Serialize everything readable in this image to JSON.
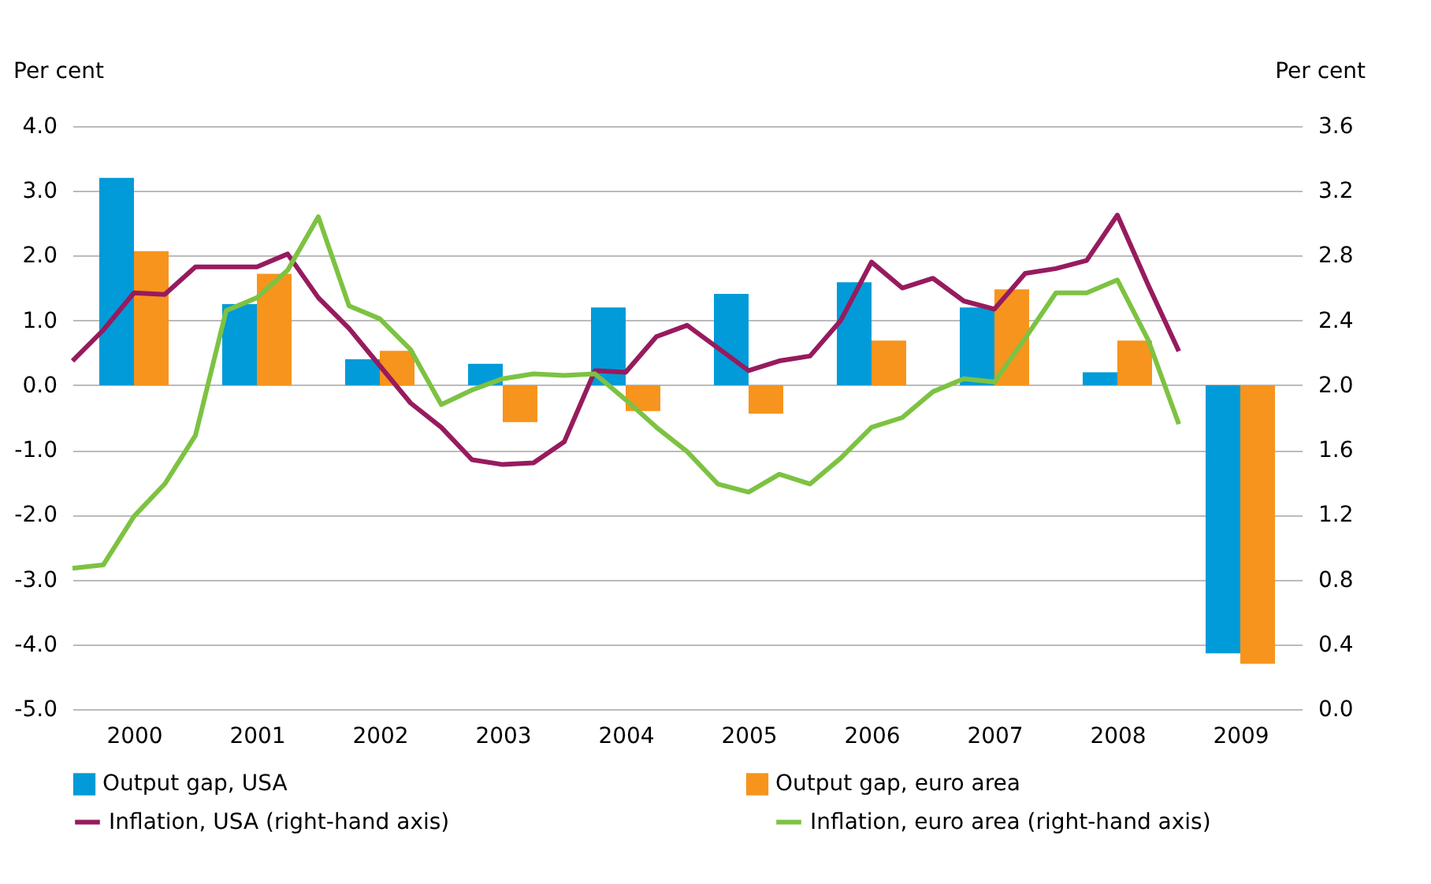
{
  "chart_data": {
    "type": "bar",
    "x": [
      2000.5,
      2001.5,
      2002.5,
      2003.5,
      2004.5,
      2005.5,
      2006.5,
      2007.5,
      2008.5,
      2009.5
    ],
    "xlim": [
      2000,
      2010
    ],
    "xticks": [
      {
        "value": 2000.5,
        "label": "2000"
      },
      {
        "value": 2001.5,
        "label": "2001"
      },
      {
        "value": 2002.5,
        "label": "2002"
      },
      {
        "value": 2003.5,
        "label": "2003"
      },
      {
        "value": 2004.5,
        "label": "2004"
      },
      {
        "value": 2005.5,
        "label": "2005"
      },
      {
        "value": 2006.5,
        "label": "2006"
      },
      {
        "value": 2007.5,
        "label": "2007"
      },
      {
        "value": 2008.5,
        "label": "2008"
      },
      {
        "value": 2009.5,
        "label": "2009"
      }
    ],
    "ylabel": "Per cent",
    "y2label": "Per cent",
    "ylim": [
      -5,
      4
    ],
    "yticks": [
      {
        "value": -5,
        "label": "-5.0"
      },
      {
        "value": -4,
        "label": "-4.0"
      },
      {
        "value": -3,
        "label": "-3.0"
      },
      {
        "value": -2,
        "label": "-2.0"
      },
      {
        "value": -1,
        "label": "-1.0"
      },
      {
        "value": 0,
        "label": "0.0"
      },
      {
        "value": 1,
        "label": "1.0"
      },
      {
        "value": 2,
        "label": "2.0"
      },
      {
        "value": 3,
        "label": "3.0"
      },
      {
        "value": 4,
        "label": "4.0"
      }
    ],
    "y2lim": [
      0,
      3.6
    ],
    "y2ticks": [
      {
        "value": 0,
        "label": "0.0"
      },
      {
        "value": 0.4,
        "label": "0.4"
      },
      {
        "value": 0.8,
        "label": "0.8"
      },
      {
        "value": 1.2,
        "label": "1.2"
      },
      {
        "value": 1.6,
        "label": "1.6"
      },
      {
        "value": 2,
        "label": "2.0"
      },
      {
        "value": 2.4,
        "label": "2.4"
      },
      {
        "value": 2.8,
        "label": "2.8"
      },
      {
        "value": 3.2,
        "label": "3.2"
      },
      {
        "value": 3.6,
        "label": "3.6"
      }
    ],
    "grid": "y",
    "legend": "bottom",
    "series": [
      {
        "name": "Output gap, USA",
        "color": "#009bd8",
        "values": [
          3.2,
          1.25,
          0.4,
          0.33,
          1.2,
          1.41,
          1.59,
          1.2,
          0.2,
          -4.14
        ]
      },
      {
        "name": "Output gap, euro area",
        "color": "#f7941d",
        "values": [
          2.07,
          1.72,
          0.53,
          -0.57,
          -0.4,
          -0.44,
          0.69,
          1.48,
          0.69,
          -4.3
        ]
      },
      {
        "name": "Inflation, USA (right-hand axis)",
        "type": "line",
        "axis": "y2",
        "color": "#971b5e",
        "x": [
          2000,
          2000.25,
          2000.5,
          2000.75,
          2001,
          2001.25,
          2001.5,
          2001.75,
          2002,
          2002.25,
          2002.5,
          2002.75,
          2003,
          2003.25,
          2003.5,
          2003.75,
          2004,
          2004.25,
          2004.5,
          2004.75,
          2005,
          2005.25,
          2005.5,
          2005.75,
          2006,
          2006.25,
          2006.5,
          2006.75,
          2007,
          2007.25,
          2007.5,
          2007.75,
          2008,
          2008.25,
          2008.5,
          2008.75,
          2009
        ],
        "values": [
          2.15,
          2.34,
          2.57,
          2.56,
          2.73,
          2.73,
          2.73,
          2.81,
          2.54,
          2.35,
          2.12,
          1.89,
          1.74,
          1.54,
          1.51,
          1.52,
          1.65,
          2.09,
          2.08,
          2.3,
          2.37,
          2.23,
          2.09,
          2.15,
          2.18,
          2.4,
          2.76,
          2.6,
          2.66,
          2.52,
          2.47,
          2.69,
          2.72,
          2.77,
          3.05,
          2.62,
          2.21
        ]
      },
      {
        "name": "Inflation, euro area (right-hand axis)",
        "type": "line",
        "axis": "y2",
        "color": "#7dc242",
        "x": [
          2000,
          2000.25,
          2000.5,
          2000.75,
          2001,
          2001.25,
          2001.5,
          2001.75,
          2002,
          2002.25,
          2002.5,
          2002.75,
          2003,
          2003.25,
          2003.5,
          2003.75,
          2004,
          2004.25,
          2004.5,
          2004.75,
          2005,
          2005.25,
          2005.5,
          2005.75,
          2006,
          2006.25,
          2006.5,
          2006.75,
          2007,
          2007.25,
          2007.5,
          2007.75,
          2008,
          2008.25,
          2008.5,
          2008.75,
          2009
        ],
        "values": [
          0.87,
          0.89,
          1.19,
          1.39,
          1.69,
          2.46,
          2.54,
          2.71,
          3.04,
          2.49,
          2.41,
          2.22,
          1.88,
          1.97,
          2.04,
          2.07,
          2.06,
          2.07,
          1.91,
          1.74,
          1.59,
          1.39,
          1.34,
          1.45,
          1.39,
          1.55,
          1.74,
          1.8,
          1.96,
          2.04,
          2.02,
          2.29,
          2.57,
          2.57,
          2.65,
          2.28,
          1.76
        ]
      }
    ]
  }
}
